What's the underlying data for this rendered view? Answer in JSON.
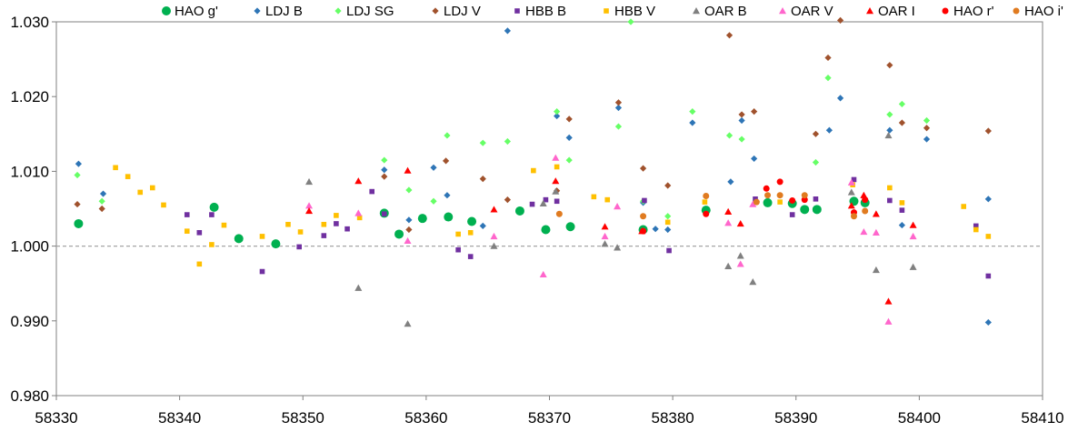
{
  "chart_data": {
    "type": "scatter",
    "title": "",
    "xlabel": "",
    "ylabel": "",
    "xlim": [
      58330,
      58410
    ],
    "ylim": [
      0.98,
      1.03
    ],
    "x_ticks": [
      "58330",
      "58340",
      "58350",
      "58360",
      "58370",
      "58380",
      "58390",
      "58400",
      "58410"
    ],
    "y_ticks": [
      "0.980",
      "0.990",
      "1.000",
      "1.010",
      "1.020",
      "1.030"
    ],
    "reference_line": 1.0,
    "grid": false,
    "legend_position": "top",
    "series": [
      {
        "name": "HAO g'",
        "marker": "circle",
        "color": "#00b050",
        "x": [
          58331.8,
          58342.8,
          58344.8,
          58347.8,
          58356.6,
          58357.8,
          58359.7,
          58361.8,
          58363.7,
          58367.6,
          58369.7,
          58371.7,
          58377.6,
          58382.7,
          58387.7,
          58389.7,
          58390.7,
          58391.7,
          58394.7,
          58395.6
        ],
        "y": [
          1.003,
          1.0052,
          1.001,
          1.0003,
          1.0044,
          1.0016,
          1.0037,
          1.0039,
          1.0033,
          1.0047,
          1.0022,
          1.0026,
          1.0022,
          1.0048,
          1.0058,
          1.0057,
          1.0049,
          1.0049,
          1.006,
          1.0058
        ]
      },
      {
        "name": "LDJ B",
        "marker": "diamond",
        "color": "#2e75b6",
        "x": [
          58331.8,
          58333.8,
          58356.6,
          58358.6,
          58360.6,
          58361.7,
          58364.6,
          58366.6,
          58370.6,
          58371.6,
          58375.6,
          58377.6,
          58378.6,
          58379.6,
          58381.6,
          58384.7,
          58385.6,
          58386.6,
          58392.7,
          58393.6,
          58397.6,
          58398.6,
          58400.6,
          58405.6,
          58405.6
        ],
        "y": [
          1.011,
          1.007,
          1.0102,
          1.0035,
          1.0105,
          1.0068,
          1.0027,
          1.0288,
          1.0174,
          1.0145,
          1.0185,
          1.0058,
          1.0023,
          1.0022,
          1.0165,
          1.0086,
          1.0168,
          1.0117,
          1.0155,
          1.0198,
          1.0155,
          1.0028,
          1.0143,
          1.0063,
          0.9898
        ]
      },
      {
        "name": "LDJ SG",
        "marker": "diamond",
        "color": "#66ff66",
        "x": [
          58331.7,
          58333.7,
          58356.6,
          58358.6,
          58360.6,
          58361.7,
          58364.6,
          58366.6,
          58370.6,
          58371.6,
          58375.6,
          58376.6,
          58377.6,
          58379.6,
          58381.6,
          58384.6,
          58385.6,
          58391.6,
          58392.6,
          58397.6,
          58398.6,
          58400.6
        ],
        "y": [
          1.0095,
          1.006,
          1.0115,
          1.0075,
          1.006,
          1.0148,
          1.0138,
          1.014,
          1.018,
          1.0115,
          1.016,
          1.03,
          1.006,
          1.004,
          1.018,
          1.0148,
          1.0143,
          1.0112,
          1.0225,
          1.0176,
          1.019,
          1.0168
        ]
      },
      {
        "name": "LDJ V",
        "marker": "diamond",
        "color": "#a0522d",
        "x": [
          58331.7,
          58333.7,
          58356.6,
          58358.6,
          58361.6,
          58364.6,
          58366.6,
          58370.6,
          58371.6,
          58375.6,
          58377.6,
          58379.6,
          58384.6,
          58385.6,
          58386.6,
          58391.6,
          58392.6,
          58393.6,
          58397.6,
          58398.6,
          58400.6,
          58405.6
        ],
        "y": [
          1.0056,
          1.005,
          1.0093,
          1.0022,
          1.0114,
          1.009,
          1.0062,
          1.0074,
          1.017,
          1.0192,
          1.0104,
          1.0081,
          1.0282,
          1.0176,
          1.018,
          1.015,
          1.0252,
          1.0302,
          1.0242,
          1.0165,
          1.0158,
          1.0154
        ]
      },
      {
        "name": "HBB B",
        "marker": "square",
        "color": "#7030a0",
        "x": [
          58340.6,
          58341.6,
          58342.6,
          58346.7,
          58349.7,
          58351.7,
          58352.7,
          58353.6,
          58355.6,
          58356.6,
          58362.6,
          58363.6,
          58368.6,
          58369.7,
          58370.6,
          58377.7,
          58379.7,
          58386.7,
          58389.7,
          58391.6,
          58394.7,
          58397.6,
          58398.6,
          58404.6,
          58405.6
        ],
        "y": [
          1.0042,
          1.0018,
          1.0042,
          0.9966,
          0.9999,
          1.0014,
          1.003,
          1.0023,
          1.0073,
          1.0043,
          0.9995,
          0.9986,
          1.0056,
          1.0062,
          1.006,
          1.0061,
          0.9994,
          1.0063,
          1.0042,
          1.0063,
          1.0089,
          1.0061,
          1.0048,
          1.0027,
          0.996
        ]
      },
      {
        "name": "HBB V",
        "marker": "square",
        "color": "#ffc000",
        "x": [
          58334.8,
          58335.8,
          58336.8,
          58337.8,
          58338.7,
          58340.6,
          58341.6,
          58342.6,
          58343.6,
          58346.7,
          58348.8,
          58349.8,
          58351.7,
          58352.7,
          58354.6,
          58362.6,
          58363.6,
          58368.7,
          58370.6,
          58373.6,
          58374.7,
          58379.6,
          58382.6,
          58388.7,
          58394.6,
          58397.6,
          58398.6,
          58403.6,
          58404.6,
          58405.6
        ],
        "y": [
          1.0105,
          1.0093,
          1.0072,
          1.0078,
          1.0055,
          1.002,
          0.9976,
          1.0002,
          1.0028,
          1.0013,
          1.0029,
          1.0019,
          1.0029,
          1.0041,
          1.0038,
          1.0016,
          1.0018,
          1.0101,
          1.0106,
          1.0066,
          1.0062,
          1.0032,
          1.0059,
          1.0059,
          1.0082,
          1.0078,
          1.0058,
          1.0053,
          1.0022,
          1.0013
        ]
      },
      {
        "name": "OAR B",
        "marker": "triangle",
        "color": "#808080",
        "x": [
          58350.5,
          58354.5,
          58358.5,
          58365.5,
          58369.5,
          58370.5,
          58374.5,
          58375.5,
          58384.5,
          58385.5,
          58386.5,
          58394.5,
          58396.5,
          58397.5,
          58399.5
        ],
        "y": [
          1.0086,
          0.9944,
          0.9896,
          1.0,
          1.0057,
          1.0073,
          1.0003,
          0.9998,
          0.9973,
          0.9987,
          0.9952,
          1.0072,
          0.9968,
          1.0148,
          0.9972
        ]
      },
      {
        "name": "OAR V",
        "marker": "triangle",
        "color": "#ff66cc",
        "x": [
          58350.5,
          58354.5,
          58358.5,
          58365.5,
          58369.5,
          58370.5,
          58374.5,
          58375.5,
          58384.5,
          58385.5,
          58386.5,
          58394.5,
          58395.5,
          58396.5,
          58397.5,
          58399.5
        ],
        "y": [
          1.0054,
          1.0044,
          1.0007,
          1.0013,
          0.9962,
          1.0118,
          1.0013,
          1.0053,
          1.0031,
          0.9976,
          1.0056,
          1.0085,
          1.0019,
          1.0018,
          0.9899,
          1.0013
        ]
      },
      {
        "name": "OAR I",
        "marker": "triangle",
        "color": "#ff0000",
        "x": [
          58350.5,
          58354.5,
          58358.5,
          58365.5,
          58370.5,
          58374.5,
          58377.5,
          58384.5,
          58385.5,
          58394.5,
          58395.5,
          58396.5,
          58397.5,
          58399.5
        ],
        "y": [
          1.0047,
          1.0087,
          1.0101,
          1.0049,
          1.0087,
          1.0026,
          1.002,
          1.0046,
          1.003,
          1.0054,
          1.0068,
          1.0043,
          0.9926,
          1.0028
        ]
      },
      {
        "name": "HAO r'",
        "marker": "circle",
        "color": "#ff0000",
        "x": [
          58377.6,
          58382.7,
          58387.6,
          58388.7,
          58389.7,
          58390.7,
          58394.7,
          58395.6
        ],
        "y": [
          1.002,
          1.0043,
          1.0077,
          1.0086,
          1.0061,
          1.0062,
          1.0045,
          1.0062
        ]
      },
      {
        "name": "HAO i'",
        "marker": "circle",
        "color": "#e07b20",
        "x": [
          58370.8,
          58377.6,
          58382.7,
          58386.8,
          58387.7,
          58388.7,
          58390.7,
          58394.7,
          58395.6
        ],
        "y": [
          1.0043,
          1.004,
          1.0067,
          1.0059,
          1.0068,
          1.0068,
          1.0068,
          1.004,
          1.0047
        ]
      }
    ]
  }
}
